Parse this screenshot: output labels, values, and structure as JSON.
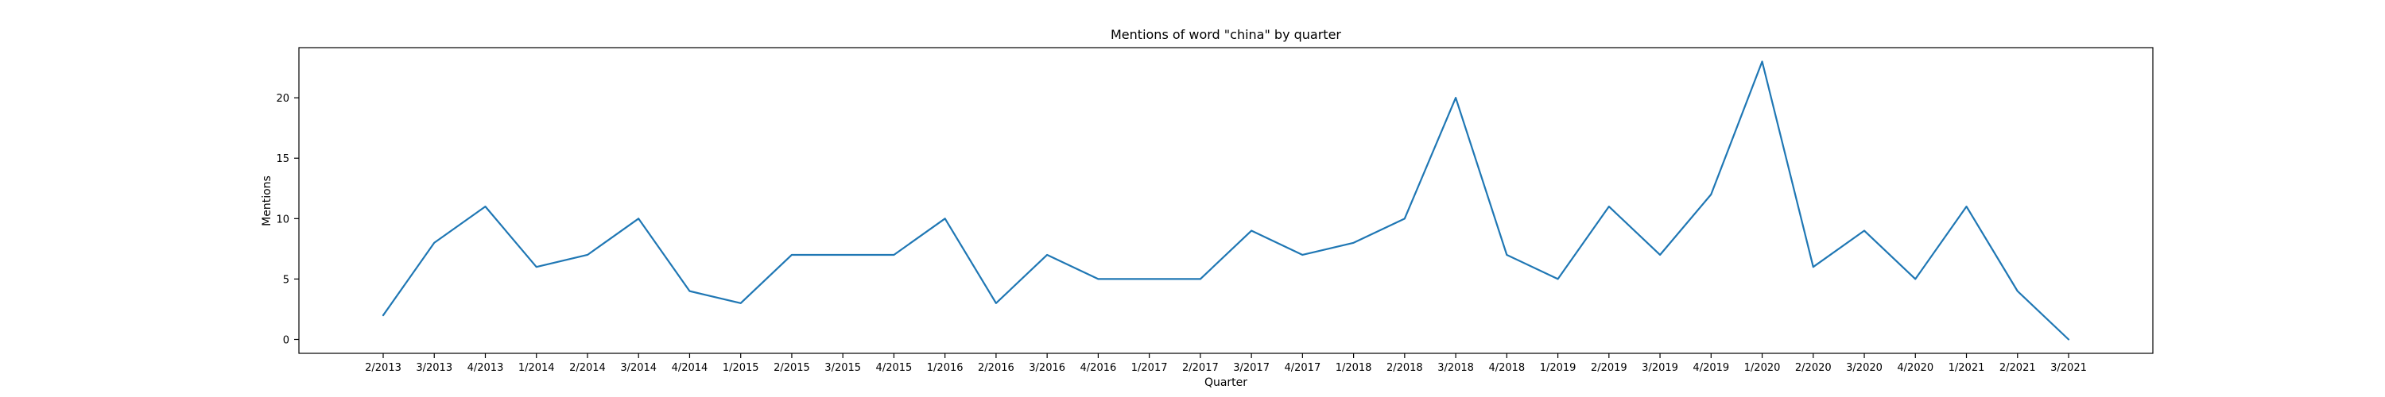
{
  "chart_data": {
    "type": "line",
    "title": "Mentions of word \"china\" by quarter",
    "xlabel": "Quarter",
    "ylabel": "Mentions",
    "categories": [
      "2/2013",
      "3/2013",
      "4/2013",
      "1/2014",
      "2/2014",
      "3/2014",
      "4/2014",
      "1/2015",
      "2/2015",
      "3/2015",
      "4/2015",
      "1/2016",
      "2/2016",
      "3/2016",
      "4/2016",
      "1/2017",
      "2/2017",
      "3/2017",
      "4/2017",
      "1/2018",
      "2/2018",
      "3/2018",
      "4/2018",
      "1/2019",
      "2/2019",
      "3/2019",
      "4/2019",
      "1/2020",
      "2/2020",
      "3/2020",
      "4/2020",
      "1/2021",
      "2/2021",
      "3/2021"
    ],
    "series": [
      {
        "values": [
          2,
          8,
          11,
          6,
          7,
          10,
          4,
          3,
          7,
          7,
          7,
          10,
          3,
          7,
          5,
          5,
          5,
          9,
          7,
          8,
          10,
          20,
          7,
          5,
          11,
          7,
          12,
          23,
          6,
          9,
          5,
          11,
          4,
          0
        ],
        "color": "#1f77b4"
      }
    ],
    "yticks": [
      0,
      5,
      10,
      15,
      20
    ],
    "ylim": [
      -1.15,
      24.15
    ],
    "grid": false,
    "legend": "none"
  }
}
